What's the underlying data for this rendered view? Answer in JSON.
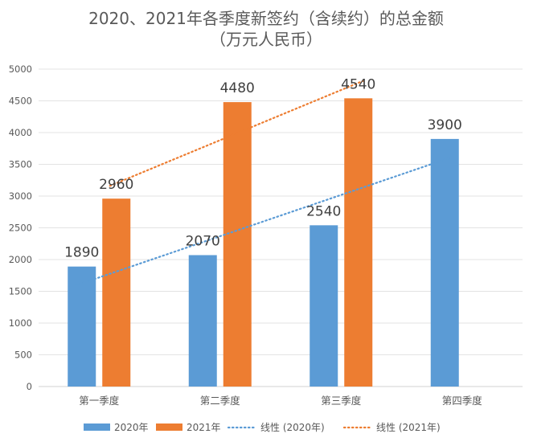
{
  "chart_data": {
    "type": "bar",
    "title": "2020、2021年各季度新签约（含续约）的总金额",
    "subtitle": "（万元人民币）",
    "xlabel": "",
    "ylabel": "",
    "categories": [
      "第一季度",
      "第二季度",
      "第三季度",
      "第四季度"
    ],
    "series": [
      {
        "name": "2020年",
        "values": [
          1890,
          2070,
          2540,
          3900
        ],
        "color": "#5B9BD5"
      },
      {
        "name": "2021年",
        "values": [
          2960,
          4480,
          4540,
          null
        ],
        "color": "#ED7D31"
      }
    ],
    "trendlines": [
      {
        "name": "线性 (2020年)",
        "series": "2020年",
        "kind": "linear",
        "color": "#5B9BD5"
      },
      {
        "name": "线性 (2021年)",
        "series": "2021年",
        "kind": "linear",
        "color": "#ED7D31"
      }
    ],
    "ylim": [
      0,
      5000
    ],
    "yticks": [
      0,
      500,
      1000,
      1500,
      2000,
      2500,
      3000,
      3500,
      4000,
      4500,
      5000
    ],
    "grid": true,
    "legend": "bottom",
    "data_labels": true
  }
}
